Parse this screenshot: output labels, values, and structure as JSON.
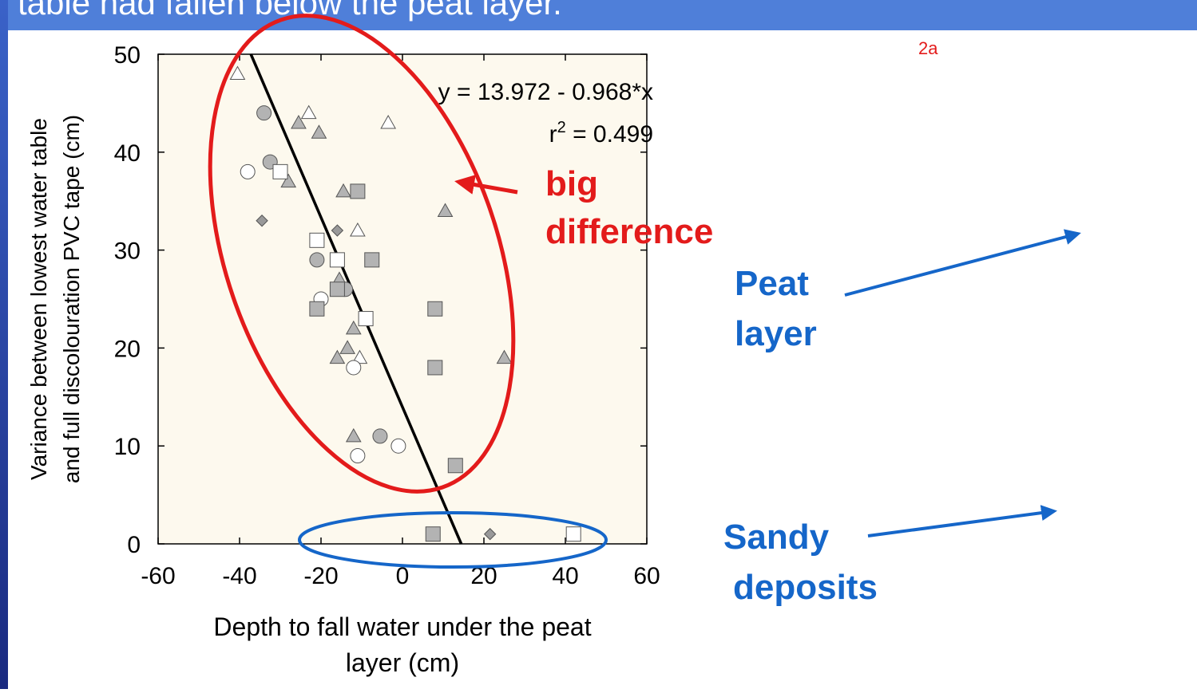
{
  "chart_data": {
    "type": "scatter",
    "title": "table had fallen below the peat layer.",
    "panel_label": "2a",
    "xlabel": [
      "Depth to fall water under the peat",
      "layer (cm)"
    ],
    "ylabel": [
      "Variance between lowest water table",
      "and full discolouration PVC tape (cm)"
    ],
    "xlim": [
      -60,
      60
    ],
    "xticks": [
      -60,
      -40,
      -20,
      0,
      20,
      40,
      60
    ],
    "ylim": [
      0,
      50
    ],
    "yticks": [
      0,
      10,
      20,
      30,
      40,
      50
    ],
    "fit": {
      "intercept": 13.972,
      "slope": -0.968
    },
    "equation": "y = 13.972 - 0.968*x",
    "r2": [
      "r",
      "2",
      " = 0.499"
    ],
    "annotations": [
      "big",
      "difference"
    ],
    "labels": [
      [
        "Peat",
        "layer"
      ],
      [
        "Sandy",
        "deposits"
      ]
    ],
    "series": [
      {
        "marker": "triangle",
        "color": "#ffffff",
        "x": [
          -40.5,
          -23,
          -3.5,
          -11,
          -10.5
        ],
        "values": [
          48,
          44,
          43,
          32,
          19
        ]
      },
      {
        "marker": "triangle",
        "color": "#b3b3b3",
        "x": [
          -25.5,
          -20.5,
          -28,
          -14.5,
          10.5,
          -15.5,
          -12,
          -13.5,
          -16,
          25,
          -12
        ],
        "values": [
          43,
          42,
          37,
          36,
          34,
          27,
          22,
          20,
          19,
          19,
          11
        ]
      },
      {
        "marker": "circle",
        "color": "#b3b3b3",
        "x": [
          -34,
          -32.5,
          -21,
          -14,
          -5.5
        ],
        "values": [
          44,
          39,
          29,
          26,
          11
        ]
      },
      {
        "marker": "circle",
        "color": "#ffffff",
        "x": [
          -38,
          -20,
          -12,
          -11,
          -1
        ],
        "values": [
          38,
          25,
          18,
          9,
          10
        ]
      },
      {
        "marker": "square",
        "color": "#b3b3b3",
        "x": [
          -11,
          -7.5,
          -16,
          -21,
          8,
          8,
          13,
          7.5
        ],
        "values": [
          36,
          29,
          26,
          24,
          24,
          18,
          8,
          1
        ]
      },
      {
        "marker": "square",
        "color": "#ffffff",
        "x": [
          -30,
          -21,
          -16,
          -9,
          42
        ],
        "values": [
          38,
          31,
          29,
          23,
          1
        ]
      },
      {
        "marker": "diamond",
        "color": "#999999",
        "x": [
          -34.5,
          -16,
          21.5
        ],
        "values": [
          33,
          32,
          1
        ]
      }
    ]
  }
}
